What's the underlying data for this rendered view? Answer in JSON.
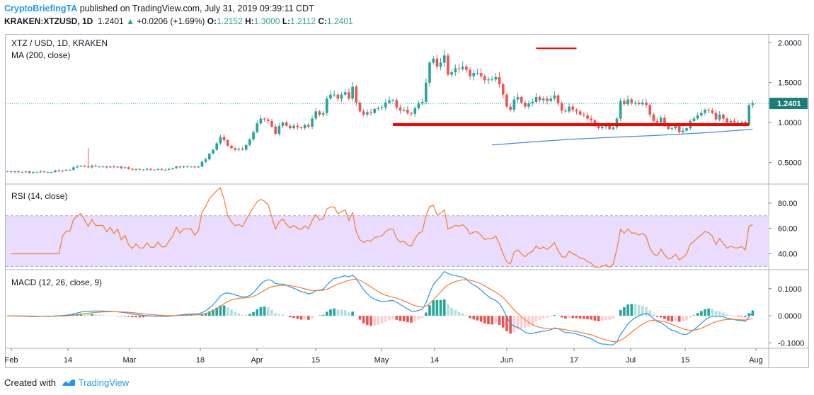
{
  "header": {
    "author": "CryptoBriefingTA",
    "published_text": "published on TradingView.com, July 31, 2019 09:39:11 CDT",
    "symbol": "KRAKEN:XTZUSD, 1D",
    "last": "1.2401",
    "arrow": "▲",
    "change": "+0.0206 (+1.69%)",
    "o_label": "O:",
    "o_value": "1.2152",
    "h_label": "H:",
    "h_value": "1.3000",
    "l_label": "L:",
    "l_value": "1.2112",
    "c_label": "C:",
    "c_value": "1.2401"
  },
  "panes": {
    "price_title": "XTZ / USD, 1D, KRAKEN",
    "ma_title": "MA (200, close)",
    "rsi_title": "RSI (14, close)",
    "macd_title": "MACD (12, 26, close, 9)"
  },
  "colors": {
    "up": "#26a69a",
    "down": "#ef5350",
    "ma": "#4a90d9",
    "rsi": "#f57c2b",
    "rsi_band": "#eadcfc",
    "macd_line": "#2196f3",
    "signal_line": "#f57c2b",
    "hist_up_strong": "#26a69a",
    "hist_up_weak": "#b2dfdb",
    "hist_down_strong": "#ef5350",
    "hist_down_weak": "#ffcdd2",
    "annotation": "#ff0000",
    "last_price_bg": "#1a7d78"
  },
  "last_price_label": "1.2401",
  "x_axis_labels": [
    "Feb",
    "14",
    "Mar",
    "18",
    "Apr",
    "15",
    "May",
    "14",
    "Jun",
    "17",
    "Jul",
    "15",
    "Aug"
  ],
  "footer": {
    "created_with": "Created with",
    "brand": "TradingView"
  },
  "chart_data": [
    {
      "type": "candlestick",
      "title": "XTZ / USD, 1D, KRAKEN",
      "y_ticks": [
        "2.0000",
        "1.5000",
        "1.0000",
        "0.5000"
      ],
      "ylim": [
        0.24,
        2.1
      ],
      "x_labels": [
        "Feb",
        "14",
        "Mar",
        "18",
        "Apr",
        "15",
        "May",
        "14",
        "Jun",
        "17",
        "Jul",
        "15",
        "Aug"
      ],
      "closes": [
        0.39,
        0.38,
        0.39,
        0.38,
        0.38,
        0.39,
        0.37,
        0.38,
        0.38,
        0.39,
        0.38,
        0.38,
        0.38,
        0.4,
        0.39,
        0.4,
        0.41,
        0.41,
        0.44,
        0.45,
        0.46,
        0.45,
        0.44,
        0.46,
        0.45,
        0.45,
        0.45,
        0.44,
        0.45,
        0.44,
        0.45,
        0.43,
        0.44,
        0.42,
        0.41,
        0.42,
        0.41,
        0.41,
        0.42,
        0.41,
        0.41,
        0.42,
        0.41,
        0.41,
        0.42,
        0.43,
        0.45,
        0.44,
        0.45,
        0.45,
        0.45,
        0.44,
        0.45,
        0.51,
        0.54,
        0.61,
        0.66,
        0.74,
        0.82,
        0.78,
        0.71,
        0.68,
        0.66,
        0.67,
        0.66,
        0.72,
        0.79,
        0.88,
        0.99,
        1.05,
        1.04,
        1.02,
        0.95,
        0.86,
        0.96,
        1.0,
        0.96,
        0.93,
        0.96,
        0.94,
        0.93,
        0.97,
        0.95,
        1.05,
        1.14,
        1.1,
        1.12,
        1.3,
        1.35,
        1.35,
        1.3,
        1.35,
        1.38,
        1.3,
        1.45,
        1.25,
        1.14,
        1.1,
        1.13,
        1.12,
        1.17,
        1.18,
        1.19,
        1.25,
        1.28,
        1.28,
        1.19,
        1.15,
        1.16,
        1.12,
        1.11,
        1.18,
        1.24,
        1.26,
        1.5,
        1.75,
        1.8,
        1.7,
        1.75,
        1.84,
        1.6,
        1.63,
        1.68,
        1.67,
        1.7,
        1.66,
        1.58,
        1.62,
        1.62,
        1.58,
        1.53,
        1.54,
        1.54,
        1.57,
        1.48,
        1.35,
        1.2,
        1.16,
        1.29,
        1.32,
        1.25,
        1.2,
        1.24,
        1.26,
        1.32,
        1.28,
        1.3,
        1.27,
        1.3,
        1.34,
        1.24,
        1.15,
        1.14,
        1.2,
        1.16,
        1.14,
        1.1,
        1.09,
        1.05,
        1.03,
        0.96,
        0.93,
        0.95,
        0.96,
        0.92,
        0.94,
        1.05,
        1.27,
        1.23,
        1.29,
        1.25,
        1.25,
        1.23,
        1.25,
        1.22,
        1.1,
        1.02,
        1.0,
        1.06,
        0.98,
        0.92,
        0.93,
        0.96,
        0.88,
        0.9,
        0.93,
        1.02,
        1.05,
        1.09,
        1.12,
        1.16,
        1.15,
        1.12,
        1.04,
        1.1,
        1.05,
        1.0,
        1.02,
        1.0,
        1.0,
        1.01,
        0.98,
        1.22,
        1.24
      ]
    },
    {
      "type": "line",
      "title": "RSI (14, close)",
      "y_ticks": [
        "80.00",
        "60.00",
        "40.00"
      ],
      "band": [
        30,
        70
      ],
      "ylim": [
        28,
        95
      ]
    },
    {
      "type": "bar",
      "title": "MACD (12, 26, close, 9)",
      "y_ticks": [
        "0.1000",
        "0.0000",
        "-0.1000"
      ],
      "ylim": [
        -0.12,
        0.17
      ],
      "series": [
        {
          "name": "MACD",
          "values": "derived from closes (12, 26)"
        },
        {
          "name": "Signal",
          "values": "derived from MACD (9)"
        }
      ]
    }
  ]
}
